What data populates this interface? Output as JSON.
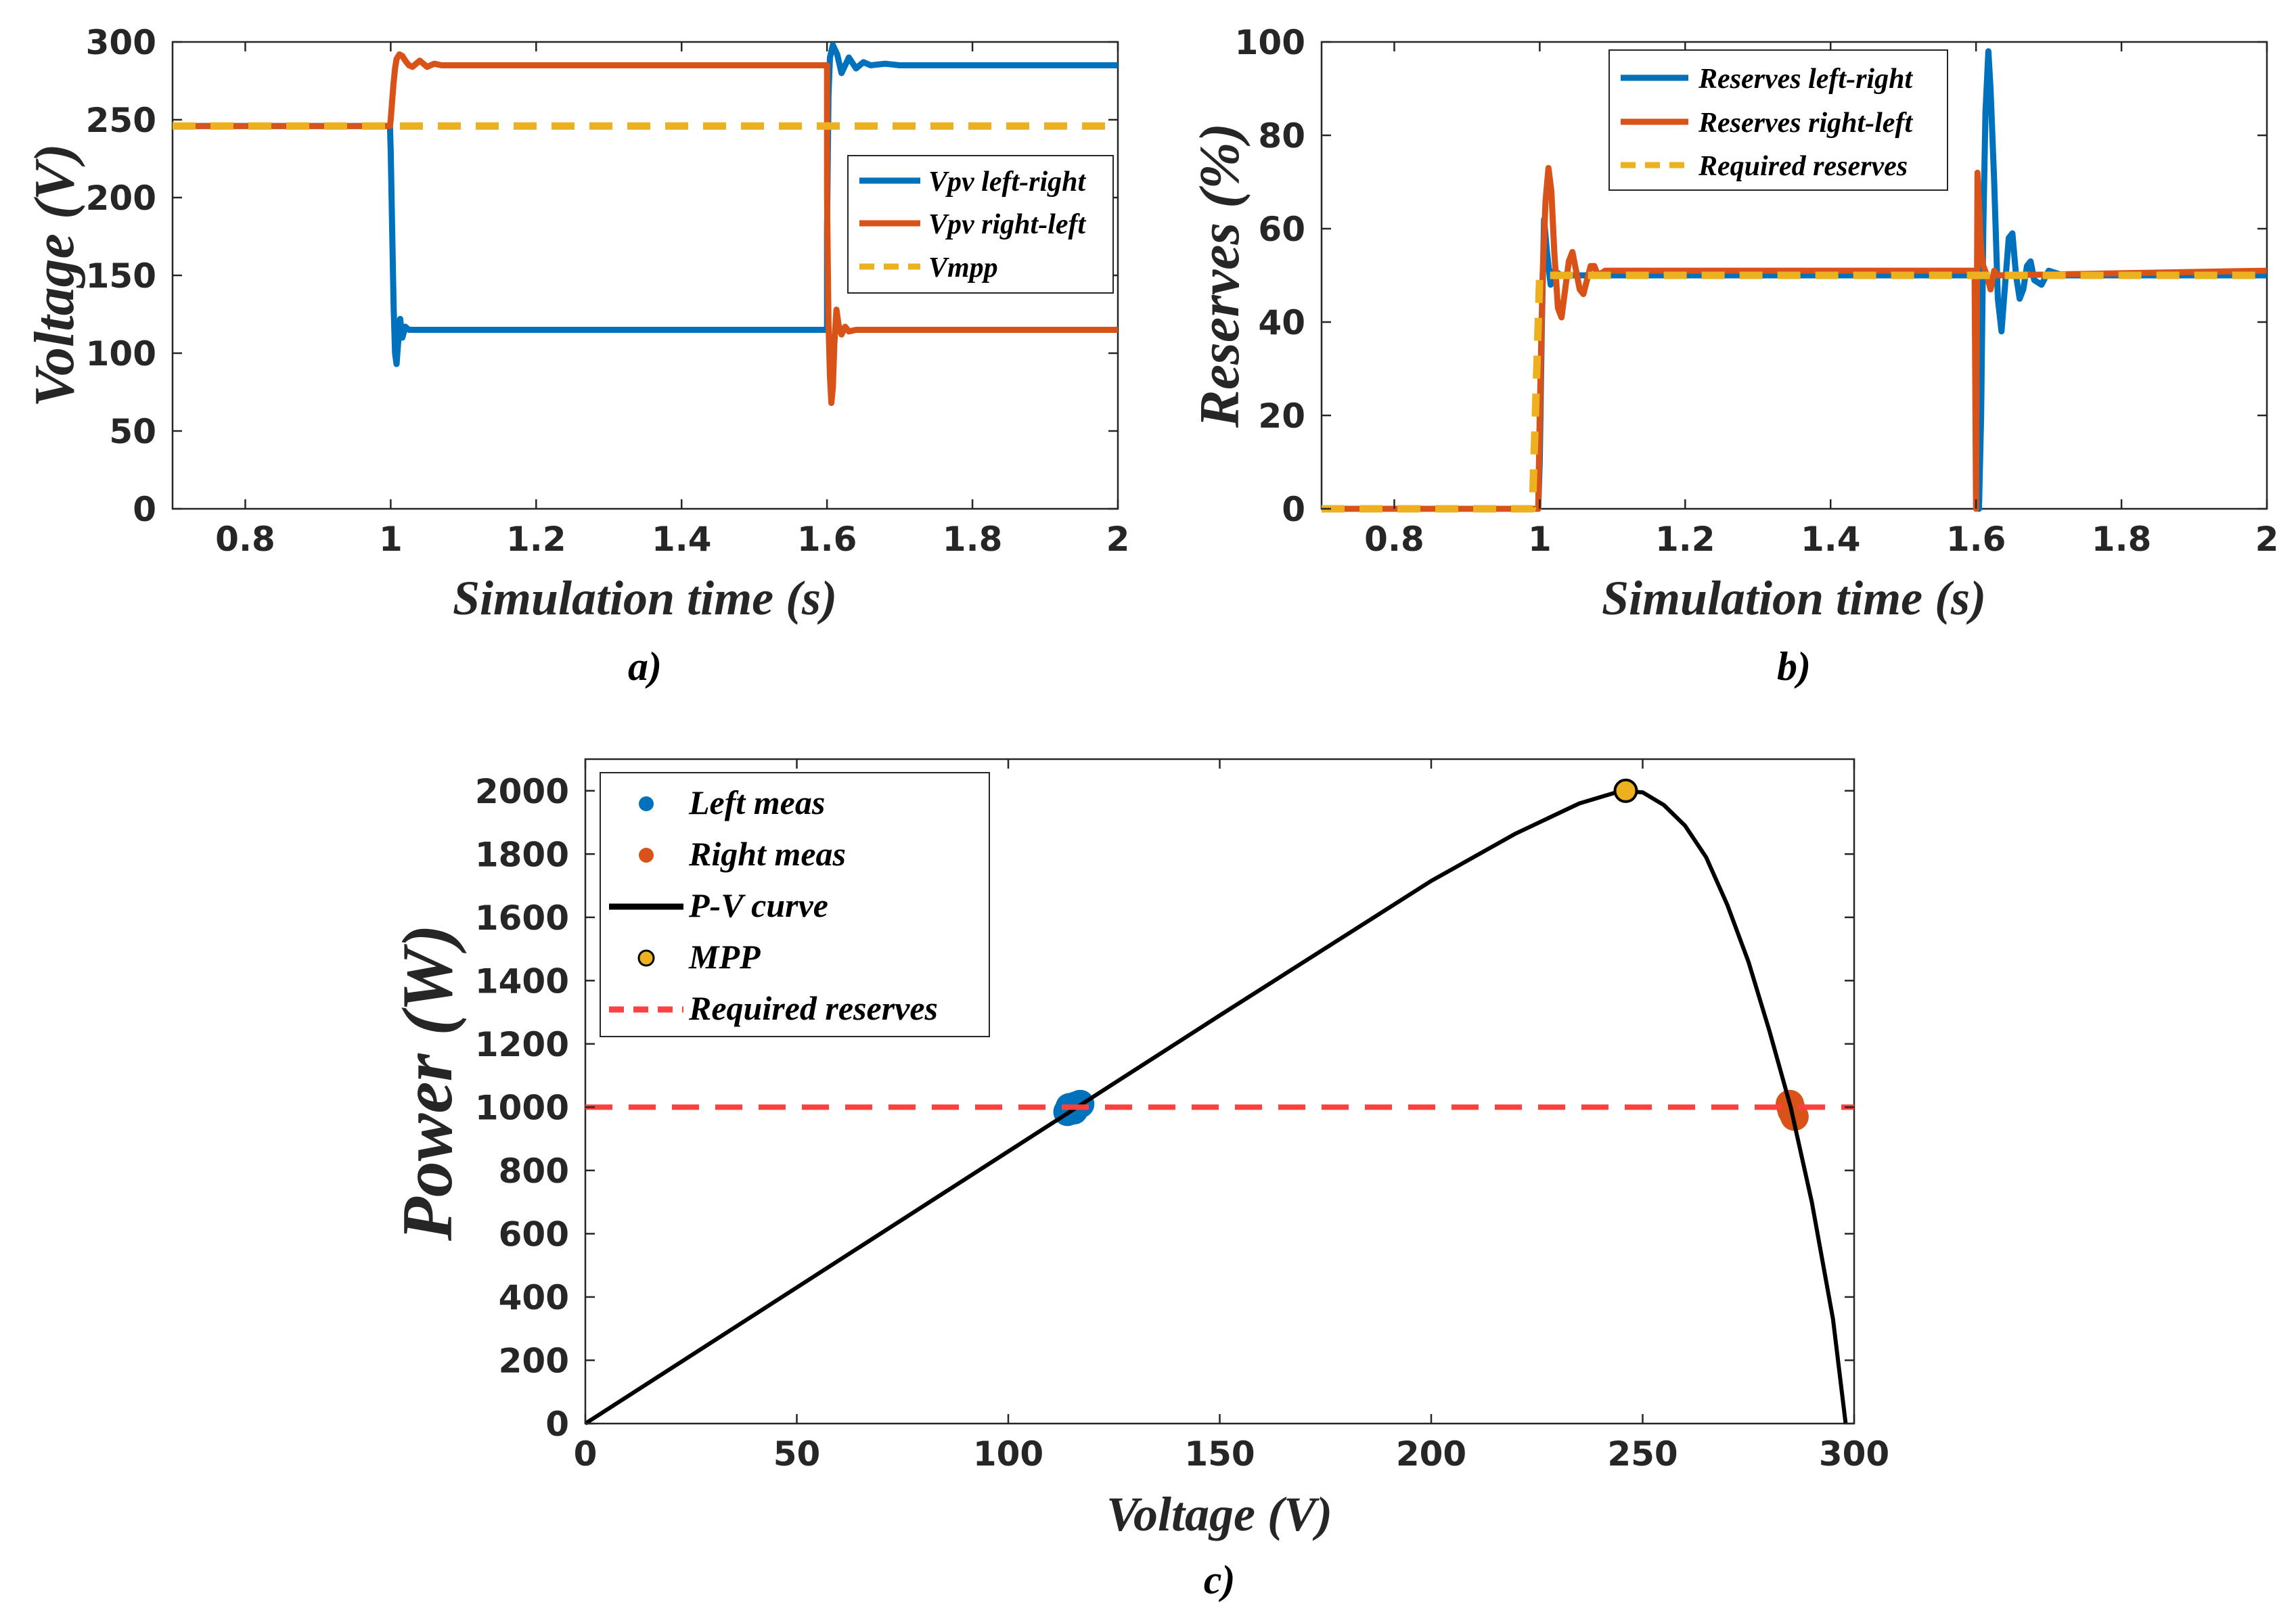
{
  "colors": {
    "blue": "#0072BD",
    "orange": "#D95319",
    "yellow": "#EDB120",
    "red": "#FF4040",
    "black": "#000000",
    "axis": "#262626"
  },
  "chart_data": [
    {
      "type": "line",
      "panel_label": "a)",
      "xlabel": "Simulation time (s)",
      "ylabel": "Voltage (V)",
      "xlim": [
        0.7,
        2
      ],
      "ylim": [
        0,
        300
      ],
      "xticks": [
        0.8,
        1,
        1.2,
        1.4,
        1.6,
        1.8,
        2
      ],
      "xtick_labels": [
        "0.8",
        "1",
        "1.2",
        "1.4",
        "1.6",
        "1.8",
        "2"
      ],
      "yticks": [
        0,
        50,
        100,
        150,
        200,
        250,
        300
      ],
      "ytick_labels": [
        "0",
        "50",
        "100",
        "150",
        "200",
        "250",
        "300"
      ],
      "legend_position": "right",
      "series": [
        {
          "name": "Vpv left-right",
          "color": "blue",
          "style": "solid",
          "x": [
            0.7,
            0.999,
            1.0,
            1.002,
            1.004,
            1.006,
            1.008,
            1.01,
            1.013,
            1.016,
            1.02,
            1.025,
            1.04,
            1.6,
            1.6,
            1.602,
            1.604,
            1.608,
            1.614,
            1.62,
            1.63,
            1.64,
            1.65,
            1.66,
            1.68,
            1.7,
            2.0
          ],
          "values": [
            246,
            246,
            230,
            180,
            130,
            100,
            93,
            105,
            122,
            110,
            117,
            115,
            115,
            115,
            180,
            265,
            290,
            298,
            292,
            280,
            290,
            283,
            287,
            285,
            286,
            285,
            285
          ]
        },
        {
          "name": "Vpv right-left",
          "color": "orange",
          "style": "solid",
          "x": [
            0.7,
            0.999,
            1.0,
            1.002,
            1.004,
            1.006,
            1.008,
            1.012,
            1.016,
            1.02,
            1.025,
            1.03,
            1.04,
            1.05,
            1.06,
            1.07,
            1.08,
            1.6,
            1.6,
            1.602,
            1.604,
            1.606,
            1.608,
            1.61,
            1.613,
            1.616,
            1.62,
            1.625,
            1.63,
            1.64,
            2.0
          ],
          "values": [
            246,
            246,
            250,
            262,
            274,
            283,
            289,
            292,
            291,
            288,
            285,
            284,
            288,
            284,
            286,
            285,
            285,
            285,
            200,
            120,
            85,
            68,
            78,
            105,
            128,
            118,
            112,
            117,
            114,
            115,
            115
          ]
        },
        {
          "name": "Vmpp",
          "color": "yellow",
          "style": "dashed",
          "x": [
            0.7,
            2.0
          ],
          "values": [
            246,
            246
          ]
        }
      ]
    },
    {
      "type": "line",
      "panel_label": "b)",
      "xlabel": "Simulation time (s)",
      "ylabel": "Reserves (%)",
      "xlim": [
        0.7,
        2
      ],
      "ylim": [
        0,
        100
      ],
      "xticks": [
        0.8,
        1,
        1.2,
        1.4,
        1.6,
        1.8,
        2
      ],
      "xtick_labels": [
        "0.8",
        "1",
        "1.2",
        "1.4",
        "1.6",
        "1.8",
        "2"
      ],
      "yticks": [
        0,
        20,
        40,
        60,
        80,
        100
      ],
      "ytick_labels": [
        "0",
        "20",
        "40",
        "60",
        "80",
        "100"
      ],
      "legend_position": "top",
      "series": [
        {
          "name": "Reserves left-right",
          "color": "blue",
          "style": "solid",
          "x": [
            0.7,
            0.998,
            1.0,
            1.003,
            1.006,
            1.01,
            1.015,
            1.02,
            1.03,
            1.05,
            1.6,
            1.604,
            1.607,
            1.61,
            1.613,
            1.617,
            1.62,
            1.625,
            1.63,
            1.635,
            1.64,
            1.645,
            1.65,
            1.655,
            1.66,
            1.665,
            1.67,
            1.675,
            1.68,
            1.69,
            1.7,
            1.72,
            1.75,
            2.0
          ],
          "values": [
            0,
            0,
            10,
            40,
            62,
            55,
            48,
            51,
            50,
            50,
            50,
            0,
            20,
            60,
            85,
            98,
            90,
            70,
            45,
            38,
            48,
            58,
            59,
            50,
            45,
            47,
            52,
            53,
            49,
            48,
            51,
            50,
            50,
            50
          ]
        },
        {
          "name": "Reserves right-left",
          "color": "orange",
          "style": "solid",
          "x": [
            0.7,
            0.998,
            1.0,
            1.004,
            1.008,
            1.012,
            1.016,
            1.02,
            1.025,
            1.03,
            1.035,
            1.04,
            1.045,
            1.05,
            1.055,
            1.06,
            1.065,
            1.07,
            1.075,
            1.08,
            1.09,
            1.1,
            1.598,
            1.6,
            1.602,
            1.604,
            1.606,
            1.608,
            1.61,
            1.615,
            1.62,
            1.625,
            1.63,
            2.0
          ],
          "values": [
            0,
            0,
            20,
            50,
            66,
            73,
            68,
            55,
            43,
            41,
            47,
            53,
            55,
            51,
            47,
            46,
            49,
            52,
            52,
            50,
            51,
            51,
            51,
            0,
            72,
            65,
            58,
            54,
            52,
            50,
            47,
            51,
            50,
            51
          ]
        },
        {
          "name": "Required reserves",
          "color": "yellow",
          "style": "dashed",
          "x": [
            0.7,
            0.99,
            1.0,
            2.0
          ],
          "values": [
            0,
            0,
            50,
            50
          ]
        }
      ]
    },
    {
      "type": "line",
      "panel_label": "c)",
      "xlabel": "Voltage (V)",
      "ylabel": "Power (W)",
      "xlim": [
        0,
        300
      ],
      "ylim": [
        0,
        2100
      ],
      "xticks": [
        0,
        50,
        100,
        150,
        200,
        250,
        300
      ],
      "xtick_labels": [
        "0",
        "50",
        "100",
        "150",
        "200",
        "250",
        "300"
      ],
      "yticks": [
        0,
        200,
        400,
        600,
        800,
        1000,
        1200,
        1400,
        1600,
        1800,
        2000
      ],
      "ytick_labels": [
        "0",
        "200",
        "400",
        "600",
        "800",
        "1000",
        "1200",
        "1400",
        "1600",
        "1800",
        "2000"
      ],
      "legend_position": "top-left",
      "series": [
        {
          "name": "Left meas",
          "color": "blue",
          "style": "marker",
          "x": [
            114,
            115,
            116,
            117,
            115.5,
            114.5
          ],
          "values": [
            985,
            995,
            1005,
            1010,
            990,
            1000
          ]
        },
        {
          "name": "Right meas",
          "color": "orange",
          "style": "marker",
          "x": [
            284.8,
            285.0,
            285.2,
            285.6,
            285.9
          ],
          "values": [
            1010,
            1000,
            990,
            980,
            970
          ]
        },
        {
          "name": "P-V curve",
          "color": "black",
          "style": "solid",
          "x": [
            0,
            50,
            100,
            150,
            200,
            220,
            235,
            245,
            250,
            255,
            260,
            265,
            270,
            275,
            280,
            285,
            290,
            295,
            298
          ],
          "values": [
            0,
            430,
            860,
            1290,
            1715,
            1865,
            1960,
            2000,
            1995,
            1955,
            1890,
            1790,
            1640,
            1460,
            1240,
            1000,
            700,
            330,
            0
          ]
        },
        {
          "name": "MPP",
          "color": "yellow",
          "style": "marker-outlined",
          "x": [
            246
          ],
          "values": [
            2000
          ]
        },
        {
          "name": "Required reserves",
          "color": "red",
          "style": "dashed",
          "x": [
            0,
            300
          ],
          "values": [
            1000,
            1000
          ]
        }
      ]
    }
  ]
}
